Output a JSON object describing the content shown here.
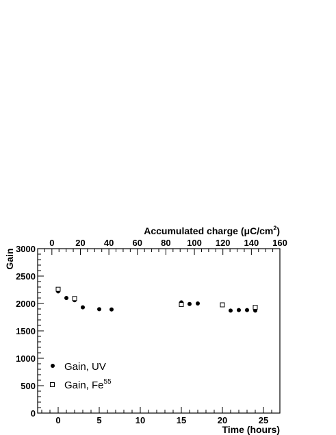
{
  "chart_data": {
    "type": "scatter",
    "title": "",
    "xlabel": "Time (hours)",
    "ylabel": "Gain",
    "top_xlabel": {
      "prefix": "Accumulated charge (",
      "mu": "μ",
      "unit": "C/cm",
      "sup": "2",
      "suffix": ")"
    },
    "xlim": [
      -2.5,
      27
    ],
    "ylim": [
      0,
      3000
    ],
    "top_xlim": [
      -10,
      160
    ],
    "x_ticks": [
      "0",
      "5",
      "10",
      "15",
      "20",
      "25"
    ],
    "x_tick_values": [
      0,
      5,
      10,
      15,
      20,
      25
    ],
    "y_ticks": [
      "0",
      "500",
      "1000",
      "1500",
      "2000",
      "2500",
      "3000"
    ],
    "y_tick_values": [
      0,
      500,
      1000,
      1500,
      2000,
      2500,
      3000
    ],
    "top_ticks": [
      "0",
      "20",
      "40",
      "60",
      "80",
      "100",
      "120",
      "140",
      "160"
    ],
    "top_tick_values": [
      0,
      20,
      40,
      60,
      80,
      100,
      120,
      140,
      160
    ],
    "grid": false,
    "legend_position": "bottom-left",
    "series": [
      {
        "name": "Gain, UV",
        "marker": "filled-circle",
        "color": "#000000",
        "points": [
          [
            0,
            2220
          ],
          [
            1,
            2100
          ],
          [
            2,
            2060
          ],
          [
            3,
            1930
          ],
          [
            5,
            1895
          ],
          [
            6.5,
            1890
          ],
          [
            15,
            2020
          ],
          [
            16,
            1990
          ],
          [
            17,
            2000
          ],
          [
            20,
            1970
          ],
          [
            21,
            1870
          ],
          [
            22,
            1880
          ],
          [
            23,
            1880
          ],
          [
            24,
            1870
          ]
        ]
      },
      {
        "name": "Gain, Fe",
        "name_sup": "55",
        "marker": "open-square",
        "color": "#000000",
        "points": [
          [
            0,
            2260
          ],
          [
            2,
            2090
          ],
          [
            15,
            1980
          ],
          [
            20,
            1975
          ],
          [
            24,
            1930
          ]
        ]
      }
    ]
  }
}
